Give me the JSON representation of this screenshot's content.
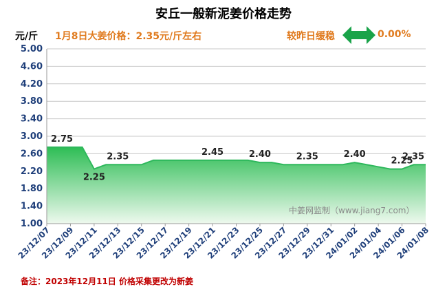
{
  "header": {
    "title": "安丘一般新泥姜价格走势",
    "unit": "元/斤",
    "headline": "1月8日大姜价格：2.35元/斤左右",
    "compare_label": "较昨日缓稳",
    "compare_value": "0.00%",
    "compare_icon": "double-arrow-icon"
  },
  "watermark": "中姜网监制（www.jiang7.com）",
  "footnote": "备注：2023年12月11日 价格采集更改为新姜",
  "colors": {
    "line": "#2eb85c",
    "fill_top": "#2ebd55",
    "fill_bottom": "#eef9ee",
    "axis_text": "#1f3f7a",
    "grid": "#c8c8c8",
    "accent": "#e07b1f",
    "note": "#c00000",
    "arrow": "#19a349"
  },
  "chart_data": {
    "type": "area",
    "title": "安丘一般新泥姜价格走势",
    "ylabel": "元/斤",
    "ylim": [
      1.0,
      5.0
    ],
    "yticks": [
      "1.00",
      "1.40",
      "1.80",
      "2.20",
      "2.60",
      "3.00",
      "3.40",
      "3.80",
      "4.20",
      "4.60",
      "5.00"
    ],
    "x": [
      "23/12/07",
      "23/12/08",
      "23/12/09",
      "23/12/10",
      "23/12/11",
      "23/12/12",
      "23/12/13",
      "23/12/14",
      "23/12/15",
      "23/12/16",
      "23/12/17",
      "23/12/18",
      "23/12/19",
      "23/12/20",
      "23/12/21",
      "23/12/22",
      "23/12/23",
      "23/12/24",
      "23/12/25",
      "23/12/26",
      "23/12/27",
      "23/12/28",
      "23/12/29",
      "23/12/30",
      "23/12/31",
      "24/01/01",
      "24/01/02",
      "24/01/03",
      "24/01/04",
      "24/01/05",
      "24/01/06",
      "24/01/07",
      "24/01/08"
    ],
    "xtick_labels": [
      "23/12/07",
      "23/12/09",
      "23/12/11",
      "23/12/13",
      "23/12/15",
      "23/12/17",
      "23/12/19",
      "23/12/21",
      "23/12/23",
      "23/12/25",
      "23/12/27",
      "23/12/29",
      "23/12/31",
      "24/01/02",
      "24/01/04",
      "24/01/06",
      "24/01/08"
    ],
    "series": [
      {
        "values": [
          2.75,
          2.75,
          2.75,
          2.75,
          2.25,
          2.35,
          2.35,
          2.35,
          2.35,
          2.45,
          2.45,
          2.45,
          2.45,
          2.45,
          2.45,
          2.45,
          2.45,
          2.45,
          2.4,
          2.4,
          2.35,
          2.35,
          2.35,
          2.35,
          2.35,
          2.35,
          2.4,
          2.35,
          2.3,
          2.25,
          2.25,
          2.35,
          2.35
        ]
      }
    ],
    "data_labels": [
      {
        "x": "23/12/07",
        "text": "2.75"
      },
      {
        "x": "23/12/11",
        "text": "2.25"
      },
      {
        "x": "23/12/13",
        "text": "2.35"
      },
      {
        "x": "23/12/21",
        "text": "2.45"
      },
      {
        "x": "23/12/25",
        "text": "2.40"
      },
      {
        "x": "23/12/29",
        "text": "2.35"
      },
      {
        "x": "24/01/02",
        "text": "2.40"
      },
      {
        "x": "24/01/06",
        "text": "2.25"
      },
      {
        "x": "24/01/08",
        "text": "2.35"
      }
    ],
    "grid": true,
    "legend": "none"
  }
}
